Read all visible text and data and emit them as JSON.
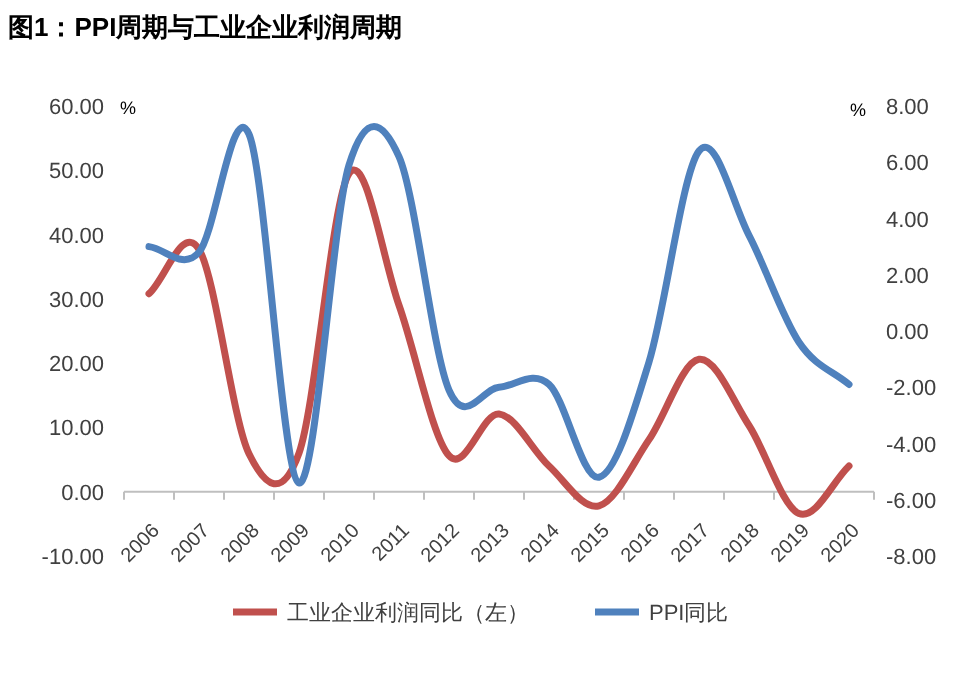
{
  "chart_data": {
    "type": "line",
    "title": "图1：PPI周期与工业企业利润周期",
    "ylabel": "%",
    "y2label": "%",
    "categories": [
      "2006",
      "2007",
      "2008",
      "2009",
      "2010",
      "2011",
      "2012",
      "2013",
      "2014",
      "2015",
      "2016",
      "2017",
      "2018",
      "2019",
      "2020"
    ],
    "series": [
      {
        "name": "工业企业利润同比（左）",
        "color": "#c0504d",
        "values": [
          30.8,
          37.7,
          5.9,
          6,
          49.5,
          29,
          5.6,
          12.1,
          4,
          -2.2,
          8.1,
          20.6,
          10.3,
          -3.4,
          4
        ]
      },
      {
        "name": "PPI同比",
        "color": "#4f81bd",
        "axis": "y2",
        "values": [
          3.0,
          2.8,
          7.0,
          -5.4,
          5.9,
          6.2,
          -2.1,
          -2.0,
          -1.9,
          -5.2,
          -1.1,
          6.4,
          3.4,
          -0.4,
          -1.9
        ]
      }
    ],
    "ylim": [
      -10,
      60
    ],
    "yticks": [
      {
        "value": -10,
        "label": "-10.00"
      },
      {
        "value": 0,
        "label": "0.00"
      },
      {
        "value": 10,
        "label": "10.00"
      },
      {
        "value": 20,
        "label": "20.00"
      },
      {
        "value": 30,
        "label": "30.00"
      },
      {
        "value": 40,
        "label": "40.00"
      },
      {
        "value": 50,
        "label": "50.00"
      },
      {
        "value": 60,
        "label": "60.00"
      }
    ],
    "y2lim": [
      -8,
      8
    ],
    "y2ticks": [
      {
        "value": -8,
        "label": "-8.00"
      },
      {
        "value": -6,
        "label": "-6.00"
      },
      {
        "value": -4,
        "label": "-4.00"
      },
      {
        "value": -2,
        "label": "-2.00"
      },
      {
        "value": 0,
        "label": "0.00"
      },
      {
        "value": 2,
        "label": "2.00"
      },
      {
        "value": 4,
        "label": "4.00"
      },
      {
        "value": 6,
        "label": "6.00"
      },
      {
        "value": 8,
        "label": "8.00"
      }
    ],
    "legend": "bottom"
  }
}
